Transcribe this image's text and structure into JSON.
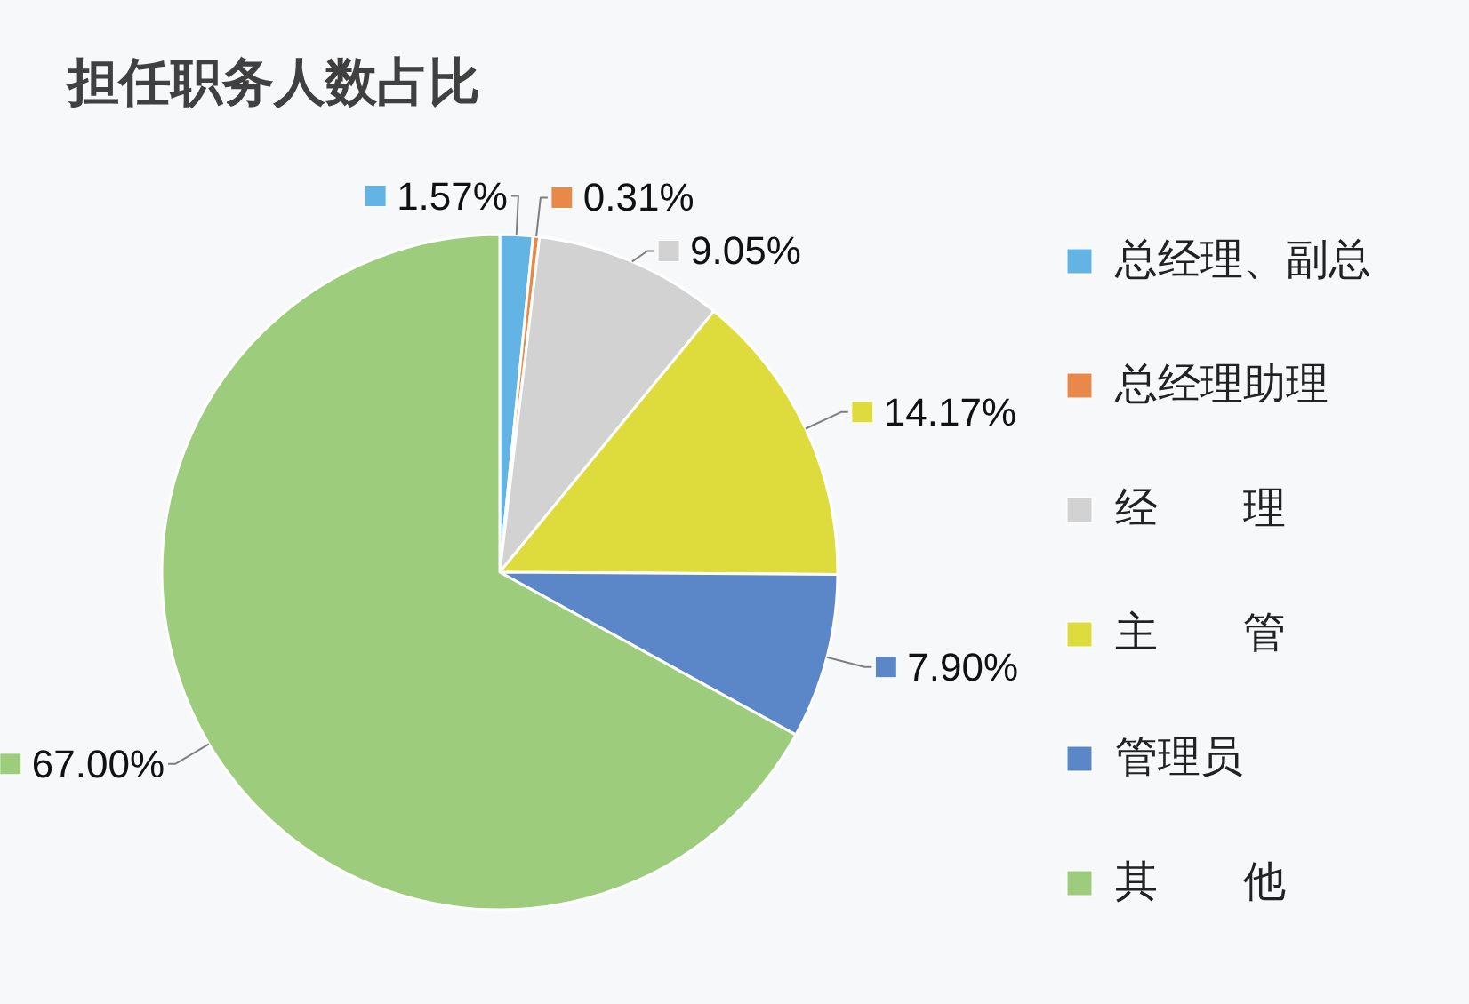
{
  "chart_data": {
    "type": "pie",
    "title": "担任职务人数占比",
    "categories": [
      "总经理、副总",
      "总经理助理",
      "经　　理",
      "主　　管",
      "管理员",
      "其　　他"
    ],
    "values": [
      1.57,
      0.31,
      9.05,
      14.17,
      7.9,
      67.0
    ],
    "colors": [
      "#62b4e4",
      "#e8894a",
      "#d2d2d2",
      "#dedb3c",
      "#5b87c9",
      "#9ccc7c"
    ],
    "value_labels": [
      "1.57%",
      "0.31%",
      "9.05%",
      "14.17%",
      "7.90%",
      "67.00%"
    ],
    "legend": "right"
  }
}
